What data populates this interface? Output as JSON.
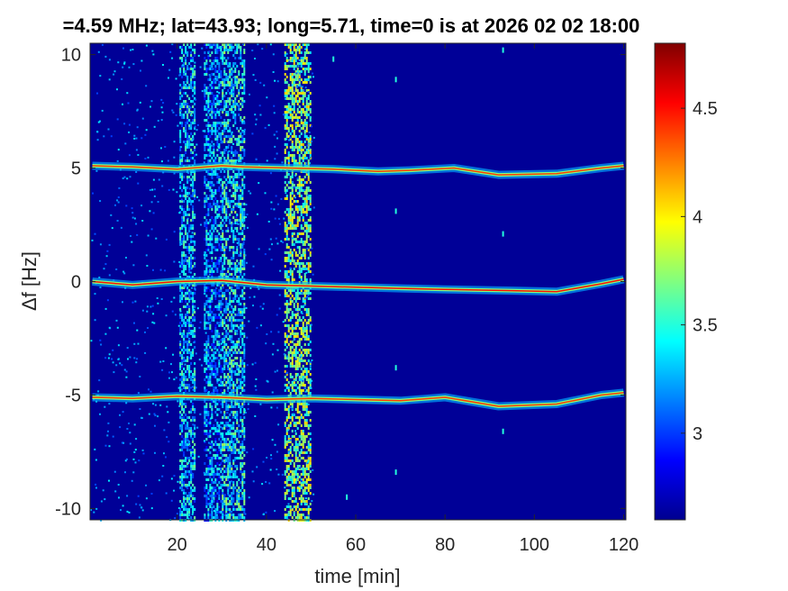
{
  "chart_data": {
    "type": "heatmap",
    "title": "=4.59 MHz;  lat=43.93; long=5.71, time=0 is at 2026 02 02 18:00",
    "xlabel": "time [min]",
    "ylabel": "Δf [Hz]",
    "xlim": [
      0.5,
      120.5
    ],
    "ylim": [
      -10.5,
      10.5
    ],
    "x_ticks": [
      20,
      40,
      60,
      80,
      100,
      120
    ],
    "x_tick_labels": [
      "20",
      "40",
      "60",
      "80",
      "100",
      "120"
    ],
    "y_ticks": [
      -10,
      -5,
      0,
      5,
      10
    ],
    "y_tick_labels": [
      "-10",
      "-5",
      "0",
      "5",
      "10"
    ],
    "colorbar": {
      "colormap": "jet",
      "clim": [
        2.6,
        4.8
      ],
      "ticks": [
        3,
        3.5,
        4,
        4.5
      ],
      "tick_labels": [
        "3",
        "3.5",
        "4",
        "4.5"
      ]
    },
    "background_level": 2.65,
    "traces": [
      {
        "name": "",
        "center_hz": 5,
        "points": [
          [
            1,
            5.1
          ],
          [
            10,
            5.05
          ],
          [
            20,
            4.95
          ],
          [
            30,
            5.1
          ],
          [
            35,
            5.05
          ],
          [
            45,
            5.0
          ],
          [
            55,
            4.95
          ],
          [
            65,
            4.85
          ],
          [
            72,
            4.9
          ],
          [
            82,
            5.0
          ],
          [
            92,
            4.7
          ],
          [
            105,
            4.75
          ],
          [
            115,
            5.0
          ],
          [
            120,
            5.1
          ]
        ],
        "peak_level": 4.4
      },
      {
        "name": "",
        "center_hz": 0,
        "points": [
          [
            1,
            0.0
          ],
          [
            10,
            -0.15
          ],
          [
            20,
            0.0
          ],
          [
            30,
            0.05
          ],
          [
            40,
            -0.15
          ],
          [
            50,
            -0.2
          ],
          [
            60,
            -0.25
          ],
          [
            70,
            -0.3
          ],
          [
            80,
            -0.35
          ],
          [
            95,
            -0.4
          ],
          [
            105,
            -0.45
          ],
          [
            115,
            -0.1
          ],
          [
            120,
            0.1
          ]
        ],
        "peak_level": 4.5
      },
      {
        "name": "",
        "center_hz": -5,
        "points": [
          [
            1,
            -5.1
          ],
          [
            10,
            -5.15
          ],
          [
            20,
            -5.05
          ],
          [
            30,
            -5.1
          ],
          [
            40,
            -5.2
          ],
          [
            50,
            -5.15
          ],
          [
            60,
            -5.2
          ],
          [
            70,
            -5.25
          ],
          [
            80,
            -5.1
          ],
          [
            92,
            -5.5
          ],
          [
            105,
            -5.4
          ],
          [
            115,
            -5.0
          ],
          [
            120,
            -4.9
          ]
        ],
        "peak_level": 4.4
      }
    ],
    "broadband_bands": [
      {
        "t_start": 20.5,
        "t_end": 24,
        "level": 3.3
      },
      {
        "t_start": 26,
        "t_end": 30,
        "level": 3.2
      },
      {
        "t_start": 30,
        "t_end": 35,
        "level": 3.4
      },
      {
        "t_start": 44,
        "t_end": 50,
        "level": 3.7
      }
    ],
    "interference_dots": [
      [
        55,
        9.8
      ],
      [
        69,
        8.9
      ],
      [
        69,
        3.1
      ],
      [
        69,
        -3.8
      ],
      [
        69,
        -8.4
      ],
      [
        93,
        10.2
      ],
      [
        93,
        2.1
      ],
      [
        93,
        -6.6
      ],
      [
        58,
        -9.5
      ]
    ]
  }
}
